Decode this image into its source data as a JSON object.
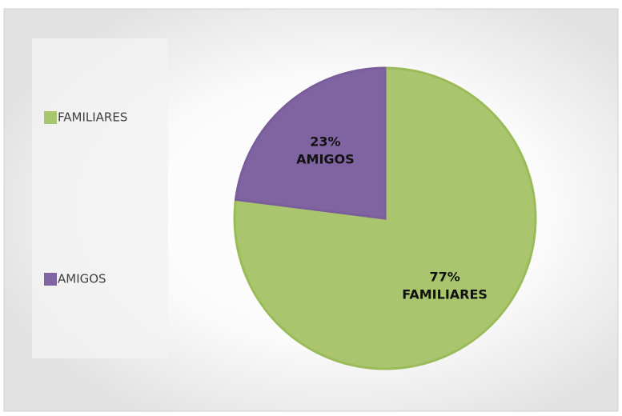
{
  "chart_data": {
    "type": "pie",
    "categories": [
      "FAMILIARES",
      "AMIGOS"
    ],
    "values": [
      77,
      23
    ],
    "value_labels": [
      "77%",
      "23%"
    ],
    "colors": [
      "#a9c66f",
      "#8064a2"
    ],
    "legend": "left"
  }
}
